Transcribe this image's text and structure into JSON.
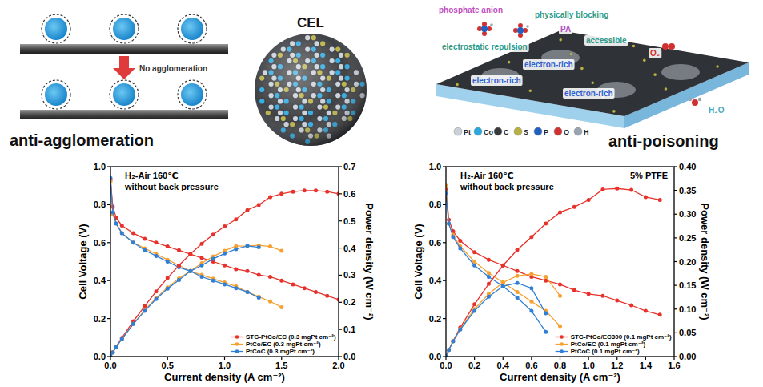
{
  "chart_data": [
    {
      "type": "line",
      "annotations": [
        "H₂-Air 160℃",
        "without back pressure"
      ],
      "x_label": "Current density (A cm⁻²)",
      "y_label": "Cell Voltage (V)",
      "y2_label": "Power density (W cm⁻²)",
      "xlim": [
        0,
        2.0
      ],
      "xticks": [
        {
          "value": 0,
          "label": "0.0"
        },
        0.5,
        {
          "value": 1,
          "label": "1.0"
        },
        1.5,
        {
          "value": 2,
          "label": "2.0"
        }
      ],
      "ylim": [
        0,
        1.0
      ],
      "yticks": [
        {
          "value": 0,
          "label": "0.0"
        },
        0.2,
        0.4,
        0.6,
        0.8,
        {
          "value": 1,
          "label": "1.0"
        }
      ],
      "y2lim": [
        0,
        0.7
      ],
      "y2ticks": [
        {
          "value": 0,
          "label": "0.0"
        },
        0.1,
        0.2,
        0.3,
        0.4,
        0.5,
        0.6,
        0.7
      ],
      "legend": "lower right",
      "marker": "circle",
      "line_style": "solid",
      "series": [
        {
          "name": "STG-PtCo/EC (0.3 mgPt cm⁻²)",
          "color": "#e8312a",
          "x": [
            0,
            0.02,
            0.05,
            0.1,
            0.2,
            0.3,
            0.4,
            0.5,
            0.6,
            0.7,
            0.8,
            0.9,
            1.0,
            1.1,
            1.2,
            1.3,
            1.4,
            1.5,
            1.6,
            1.7,
            1.8,
            1.9,
            2.0
          ],
          "values": [
            0.93,
            0.79,
            0.73,
            0.69,
            0.65,
            0.62,
            0.6,
            0.58,
            0.56,
            0.54,
            0.52,
            0.5,
            0.48,
            0.46,
            0.45,
            0.43,
            0.42,
            0.4,
            0.38,
            0.36,
            0.34,
            0.32,
            0.3
          ]
        },
        {
          "name": "PtCo/EC (0.3 mgPt cm⁻²)",
          "color": "#f5a030",
          "x": [
            0,
            0.02,
            0.05,
            0.1,
            0.2,
            0.3,
            0.4,
            0.5,
            0.6,
            0.7,
            0.8,
            0.9,
            1.0,
            1.1,
            1.2,
            1.3,
            1.4,
            1.5
          ],
          "values": [
            0.92,
            0.75,
            0.7,
            0.65,
            0.6,
            0.57,
            0.54,
            0.51,
            0.48,
            0.45,
            0.43,
            0.41,
            0.39,
            0.37,
            0.34,
            0.315,
            0.29,
            0.26
          ]
        },
        {
          "name": "PtCoC (0.3 mgPt cm⁻²)",
          "color": "#2f7fd6",
          "x": [
            0,
            0.02,
            0.05,
            0.1,
            0.2,
            0.3,
            0.4,
            0.5,
            0.6,
            0.7,
            0.8,
            0.9,
            1.0,
            1.1,
            1.2,
            1.3
          ],
          "values": [
            0.94,
            0.76,
            0.7,
            0.65,
            0.6,
            0.56,
            0.53,
            0.5,
            0.47,
            0.45,
            0.42,
            0.4,
            0.38,
            0.36,
            0.34,
            0.31
          ]
        },
        {
          "color": "#e8312a",
          "axis": "y2",
          "x": [
            0,
            0.02,
            0.05,
            0.1,
            0.2,
            0.3,
            0.4,
            0.5,
            0.6,
            0.7,
            0.8,
            0.9,
            1.0,
            1.1,
            1.2,
            1.3,
            1.4,
            1.5,
            1.6,
            1.7,
            1.8,
            1.9,
            2.0
          ],
          "values": [
            0,
            0.016,
            0.037,
            0.069,
            0.13,
            0.186,
            0.24,
            0.29,
            0.336,
            0.378,
            0.416,
            0.45,
            0.48,
            0.506,
            0.54,
            0.559,
            0.588,
            0.6,
            0.608,
            0.612,
            0.612,
            0.608,
            0.6
          ]
        },
        {
          "color": "#f5a030",
          "axis": "y2",
          "x": [
            0,
            0.02,
            0.05,
            0.1,
            0.2,
            0.3,
            0.4,
            0.5,
            0.6,
            0.7,
            0.8,
            0.9,
            1.0,
            1.1,
            1.2,
            1.3,
            1.4,
            1.5
          ],
          "values": [
            0,
            0.015,
            0.035,
            0.065,
            0.12,
            0.171,
            0.216,
            0.255,
            0.288,
            0.315,
            0.344,
            0.369,
            0.39,
            0.407,
            0.408,
            0.41,
            0.406,
            0.39
          ]
        },
        {
          "color": "#2f7fd6",
          "axis": "y2",
          "x": [
            0,
            0.02,
            0.05,
            0.1,
            0.2,
            0.3,
            0.4,
            0.5,
            0.6,
            0.7,
            0.8,
            0.9,
            1.0,
            1.1,
            1.2,
            1.3
          ],
          "values": [
            0,
            0.015,
            0.035,
            0.065,
            0.12,
            0.168,
            0.212,
            0.25,
            0.282,
            0.315,
            0.336,
            0.36,
            0.38,
            0.396,
            0.408,
            0.403
          ]
        }
      ]
    },
    {
      "type": "line",
      "annotations": [
        "H₂-Air 160℃",
        "without back pressure",
        "5% PTFE"
      ],
      "x_label": "Current density (A cm⁻²)",
      "y_label": "Cell Voltage (V)",
      "y2_label": "Power density (W cm⁻²)",
      "xlim": [
        0,
        1.6
      ],
      "xticks": [
        {
          "value": 0,
          "label": "0.0"
        },
        0.2,
        0.4,
        0.6,
        0.8,
        {
          "value": 1,
          "label": "1.0"
        },
        1.2,
        1.4,
        1.6
      ],
      "ylim": [
        0,
        1.0
      ],
      "yticks": [
        {
          "value": 0,
          "label": "0.0"
        },
        0.2,
        0.4,
        0.6,
        0.8,
        {
          "value": 1,
          "label": "1.0"
        }
      ],
      "y2lim": [
        0,
        0.4
      ],
      "y2ticks": [
        {
          "value": 0,
          "label": "0.00"
        },
        0.05,
        {
          "value": 0.1,
          "label": "0.10"
        },
        0.15,
        {
          "value": 0.2,
          "label": "0.20"
        },
        0.25,
        {
          "value": 0.3,
          "label": "0.30"
        },
        0.35,
        {
          "value": 0.4,
          "label": "0.40"
        }
      ],
      "legend": "lower right",
      "marker": "circle",
      "line_style": "solid",
      "series": [
        {
          "name": "STG-PtCo/EC300 (0.1 mgPt cm⁻²)",
          "color": "#e8312a",
          "x": [
            0,
            0.02,
            0.05,
            0.1,
            0.2,
            0.3,
            0.4,
            0.5,
            0.6,
            0.7,
            0.8,
            0.9,
            1.0,
            1.1,
            1.2,
            1.3,
            1.4,
            1.5
          ],
          "values": [
            0.88,
            0.72,
            0.66,
            0.61,
            0.55,
            0.51,
            0.48,
            0.45,
            0.42,
            0.4,
            0.38,
            0.35,
            0.33,
            0.32,
            0.295,
            0.27,
            0.24,
            0.22
          ]
        },
        {
          "name": "PtCo/EC (0.1 mgPt cm⁻²)",
          "color": "#f5a030",
          "x": [
            0,
            0.02,
            0.05,
            0.1,
            0.2,
            0.3,
            0.4,
            0.5,
            0.6,
            0.7,
            0.8
          ],
          "values": [
            0.9,
            0.7,
            0.64,
            0.58,
            0.5,
            0.44,
            0.39,
            0.34,
            0.29,
            0.24,
            0.16
          ]
        },
        {
          "name": "PtCoC (0.1 mgPt cm⁻²)",
          "color": "#2f7fd6",
          "x": [
            0,
            0.02,
            0.05,
            0.1,
            0.2,
            0.3,
            0.4,
            0.5,
            0.6,
            0.7
          ],
          "values": [
            0.86,
            0.7,
            0.63,
            0.57,
            0.48,
            0.42,
            0.37,
            0.31,
            0.24,
            0.13
          ]
        },
        {
          "color": "#e8312a",
          "axis": "y2",
          "x": [
            0,
            0.02,
            0.05,
            0.1,
            0.2,
            0.3,
            0.4,
            0.5,
            0.6,
            0.7,
            0.8,
            0.9,
            1.0,
            1.1,
            1.2,
            1.3,
            1.4,
            1.5
          ],
          "values": [
            0,
            0.014,
            0.033,
            0.061,
            0.11,
            0.153,
            0.192,
            0.225,
            0.252,
            0.28,
            0.304,
            0.315,
            0.33,
            0.352,
            0.354,
            0.351,
            0.336,
            0.33
          ]
        },
        {
          "color": "#f5a030",
          "axis": "y2",
          "x": [
            0,
            0.02,
            0.05,
            0.1,
            0.2,
            0.3,
            0.4,
            0.5,
            0.6,
            0.7,
            0.8
          ],
          "values": [
            0,
            0.014,
            0.032,
            0.058,
            0.1,
            0.132,
            0.156,
            0.17,
            0.174,
            0.168,
            0.128
          ]
        },
        {
          "color": "#2f7fd6",
          "axis": "y2",
          "x": [
            0,
            0.02,
            0.05,
            0.1,
            0.2,
            0.3,
            0.4,
            0.5,
            0.6,
            0.7
          ],
          "values": [
            0,
            0.014,
            0.032,
            0.057,
            0.096,
            0.126,
            0.148,
            0.155,
            0.144,
            0.091
          ]
        }
      ]
    }
  ],
  "diagram": {
    "anti_agglomeration": {
      "title": "anti-agglomeration",
      "arrow_label": "No agglomeration"
    },
    "cel": {
      "title": "CEL"
    },
    "anti_poisoning": {
      "title": "anti-poisoning",
      "labels": [
        {
          "text": "phosphate anion",
          "color": "#c050c0"
        },
        {
          "text": "physically blocking",
          "color": "#2a9a8a"
        },
        {
          "text": "PA",
          "color": "#b050c0"
        },
        {
          "text": "accessible",
          "color": "#2a9a8a"
        },
        {
          "text": "O₂",
          "color": "#d03030"
        },
        {
          "text": "electrostatic repulsion",
          "color": "#2a9a8a"
        },
        {
          "text": "electron-rich",
          "color": "#2f5fd0"
        },
        {
          "text": "electron-rich",
          "color": "#2f5fd0"
        },
        {
          "text": "electron-rich",
          "color": "#2f5fd0"
        },
        {
          "text": "H₂O",
          "color": "#4aa8b8"
        }
      ],
      "atoms": [
        {
          "symbol": "Pt",
          "color": "#c9d0d8"
        },
        {
          "symbol": "Co",
          "color": "#29a8e0"
        },
        {
          "symbol": "C",
          "color": "#3a3a3a"
        },
        {
          "symbol": "S",
          "color": "#b8b040"
        },
        {
          "symbol": "P",
          "color": "#2060c0"
        },
        {
          "symbol": "O",
          "color": "#d03030"
        },
        {
          "symbol": "H",
          "color": "#9aa4ae"
        }
      ]
    }
  }
}
